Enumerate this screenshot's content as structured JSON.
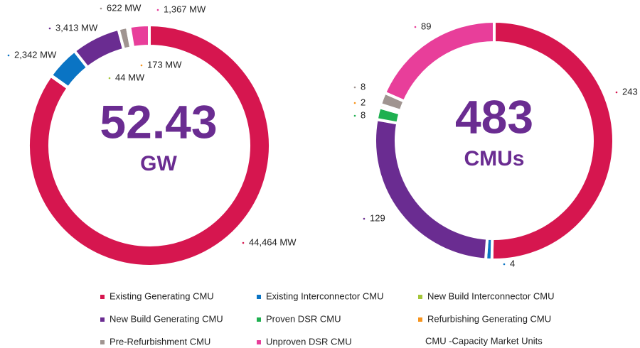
{
  "chart_data": {
    "type": "pie",
    "categories": [
      "Existing Generating CMU",
      "Existing Interconnector CMU",
      "New Build Interconnector CMU",
      "New Build Generating CMU",
      "Proven DSR CMU",
      "Refurbishing Generating CMU",
      "Pre-Refurbishment CMU",
      "Unproven DSR CMU"
    ],
    "colors": [
      "#d6164f",
      "#0a74c4",
      "#a4c639",
      "#6a2c91",
      "#1fb050",
      "#f7941d",
      "#a09490",
      "#e83e9a"
    ],
    "series": [
      {
        "center_value": "52.43",
        "center_unit": "GW",
        "values": [
          44464,
          2342,
          44,
          3413,
          null,
          173,
          622,
          1367
        ],
        "value_labels": [
          "44,464 MW",
          "2,342 MW",
          "44 MW",
          "3,413 MW",
          null,
          "173 MW",
          "622 MW",
          "1,367 MW"
        ]
      },
      {
        "center_value": "483",
        "center_unit": "CMUs",
        "values": [
          243,
          4,
          null,
          129,
          8,
          2,
          8,
          89
        ]
      }
    ],
    "note": "CMU -Capacity Market Units"
  }
}
